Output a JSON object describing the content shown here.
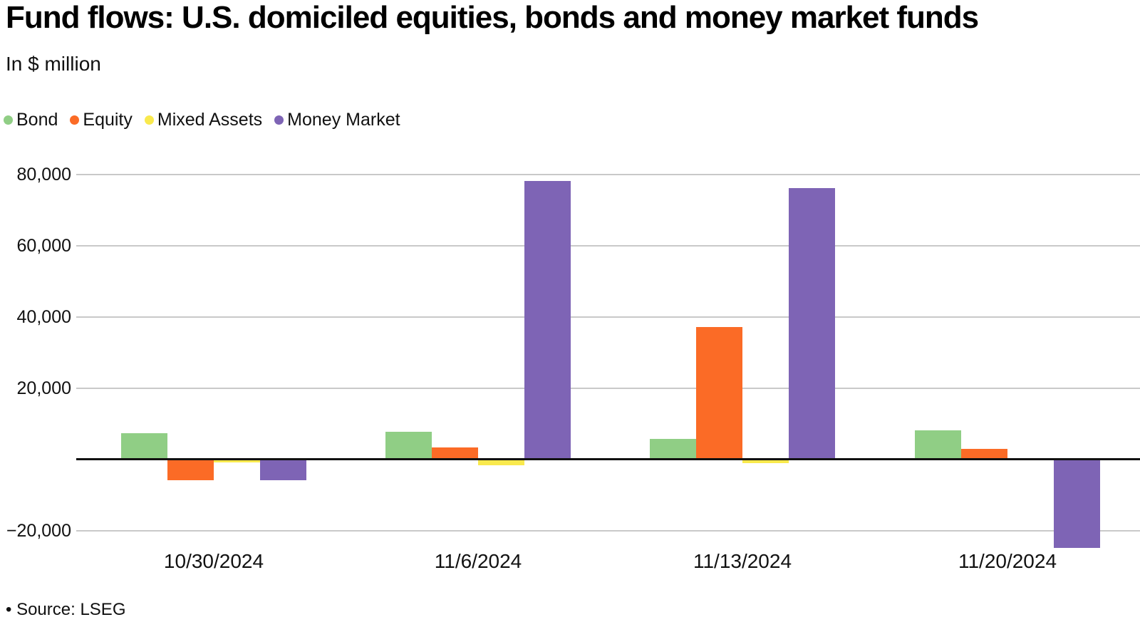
{
  "header": {
    "title": "Fund flows: U.S. domiciled equities, bonds and money market funds",
    "subtitle": "In $ million"
  },
  "legend": [
    {
      "label": "Bond",
      "color": "#90ce85",
      "icon": "legend-dot-bond"
    },
    {
      "label": "Equity",
      "color": "#fb6b26",
      "icon": "legend-dot-equity"
    },
    {
      "label": "Mixed Assets",
      "color": "#f9e94d",
      "icon": "legend-dot-mixed-assets"
    },
    {
      "label": "Money Market",
      "color": "#7e64b5",
      "icon": "legend-dot-money-market"
    }
  ],
  "chart_data": {
    "type": "bar",
    "title": "Fund flows: U.S. domiciled equities, bonds and money market funds",
    "ylabel": "In $ million",
    "categories": [
      "10/30/2024",
      "11/6/2024",
      "11/13/2024",
      "11/20/2024"
    ],
    "series": [
      {
        "name": "Bond",
        "color": "#90ce85",
        "values": [
          7500,
          7900,
          5900,
          8300
        ]
      },
      {
        "name": "Equity",
        "color": "#fb6b26",
        "values": [
          -5700,
          3400,
          37300,
          3000
        ]
      },
      {
        "name": "Mixed Assets",
        "color": "#f9e94d",
        "values": [
          -800,
          -1600,
          -900,
          -100
        ]
      },
      {
        "name": "Money Market",
        "color": "#7e64b5",
        "values": [
          -5700,
          78300,
          76300,
          -24800
        ]
      }
    ],
    "y_ticks": [
      80000,
      60000,
      40000,
      20000,
      -20000
    ],
    "y_tick_labels": [
      "80,000",
      "60,000",
      "40,000",
      "20,000",
      "−20,000"
    ],
    "ylim": [
      -26000,
      86000
    ],
    "grid": true,
    "legend_position": "top-left",
    "baseline": 0
  },
  "footer": {
    "source": "• Source: LSEG"
  }
}
